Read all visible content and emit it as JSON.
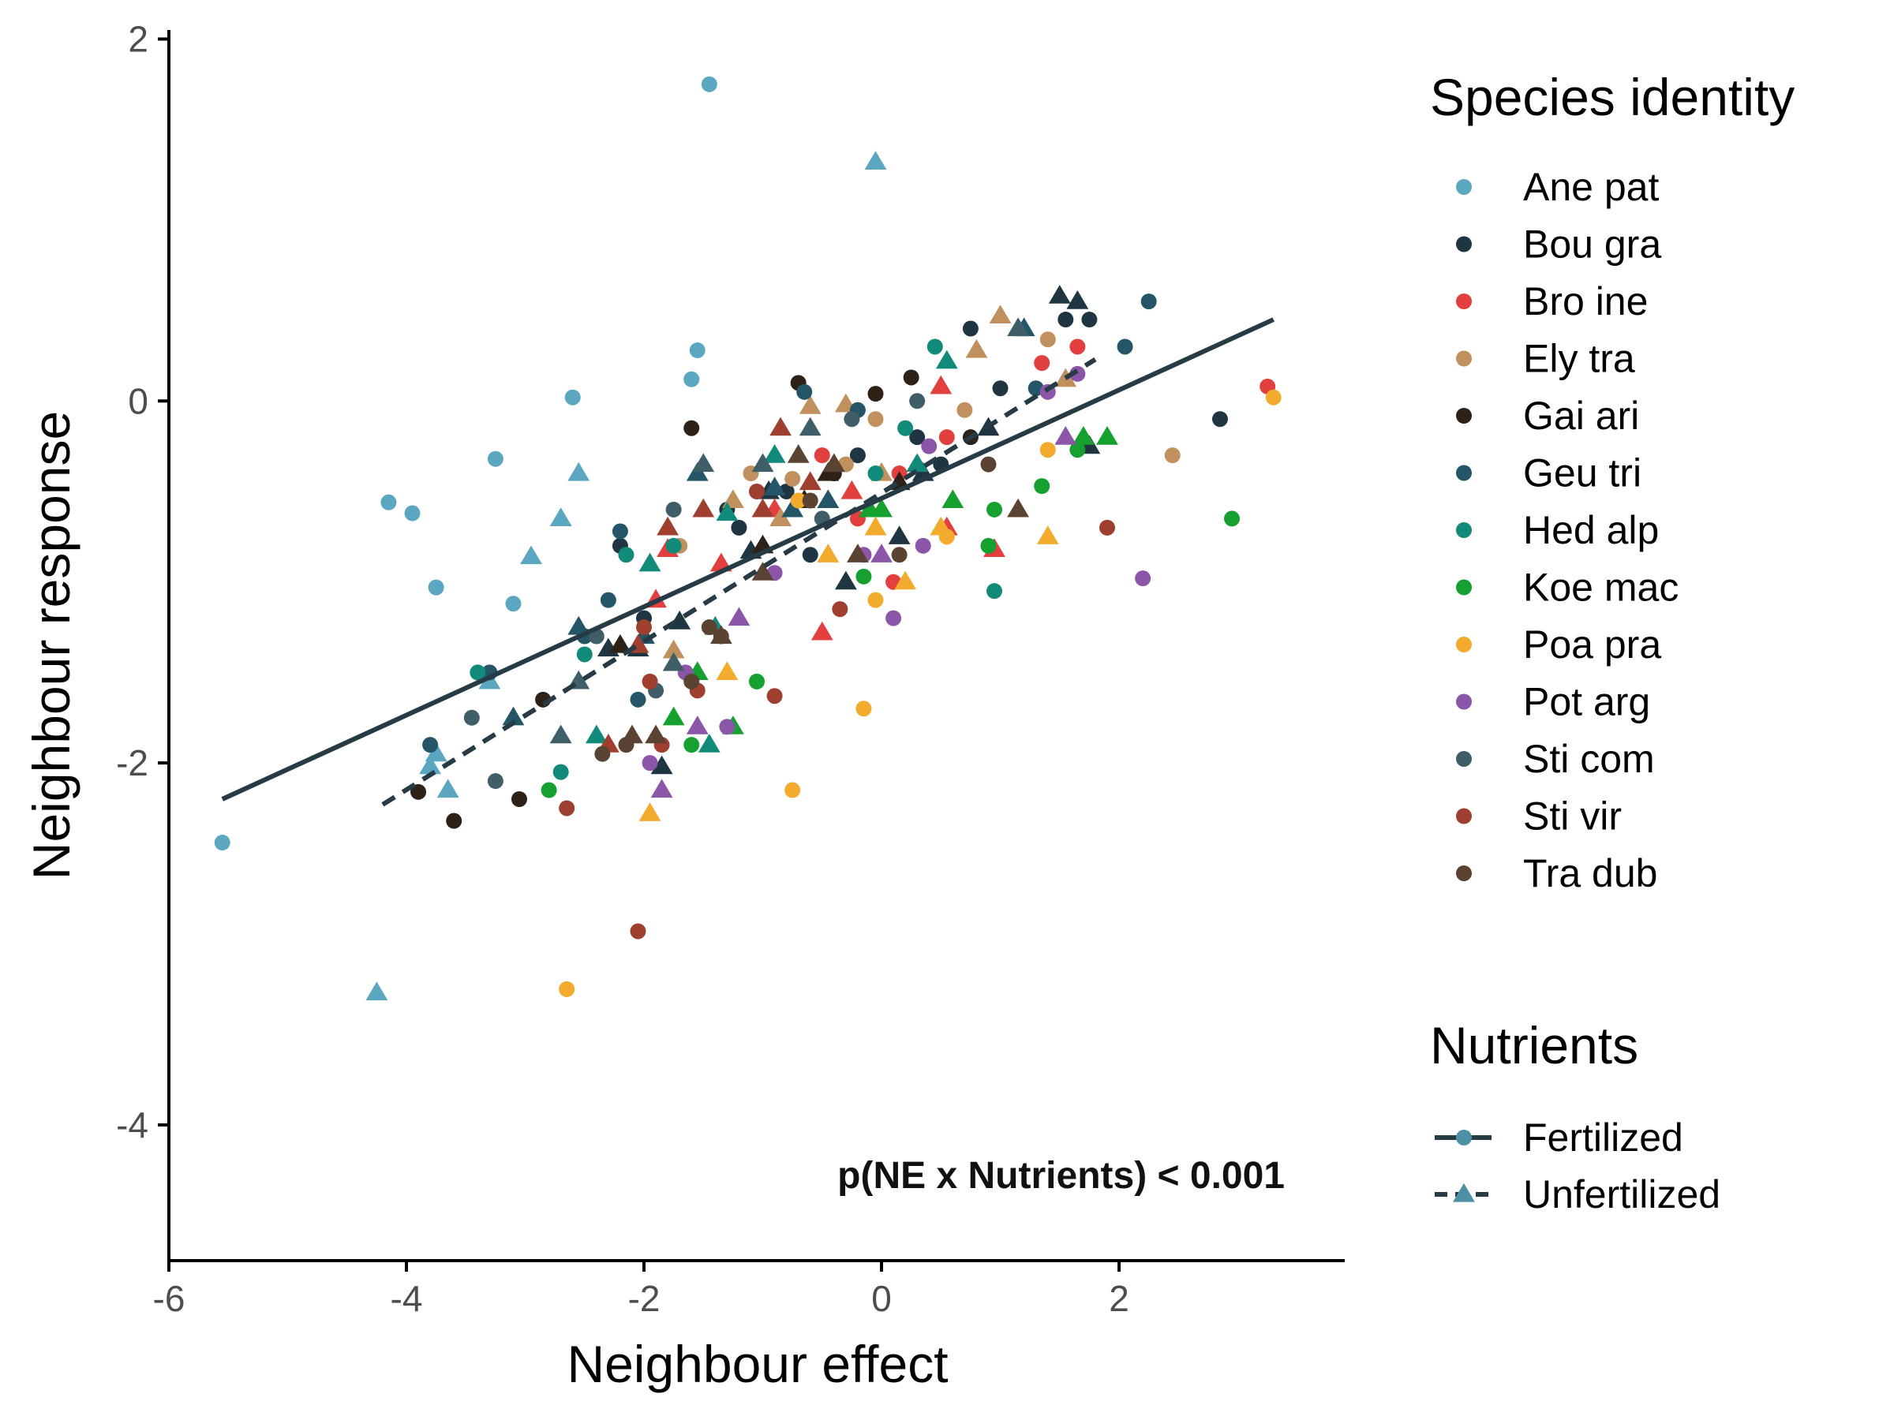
{
  "chart_data": {
    "type": "scatter",
    "xlabel": "Neighbour effect",
    "ylabel": "Neighbour response",
    "xlim": [
      -6,
      3.9
    ],
    "ylim": [
      -4.75,
      2.05
    ],
    "xticks": [
      -6,
      -4,
      -2,
      0,
      2
    ],
    "yticks": [
      -4,
      -2,
      0,
      2
    ],
    "grid": false,
    "annotation": "p(NE x Nutrients) < 0.001",
    "legend_species_title": "Species identity",
    "legend_nutrients_title": "Nutrients",
    "species": [
      {
        "name": "Ane pat",
        "color": "#5ba6c0"
      },
      {
        "name": "Bou gra",
        "color": "#1f3542"
      },
      {
        "name": "Bro ine",
        "color": "#e23f3f"
      },
      {
        "name": "Ely tra",
        "color": "#c0905e"
      },
      {
        "name": "Gai ari",
        "color": "#2d2118"
      },
      {
        "name": "Geu tri",
        "color": "#245668"
      },
      {
        "name": "Hed alp",
        "color": "#128a79"
      },
      {
        "name": "Koe mac",
        "color": "#16a030"
      },
      {
        "name": "Poa pra",
        "color": "#f2ab2c"
      },
      {
        "name": "Pot arg",
        "color": "#8c56a8"
      },
      {
        "name": "Sti com",
        "color": "#3f5e68"
      },
      {
        "name": "Sti vir",
        "color": "#9e3f30"
      },
      {
        "name": "Tra dub",
        "color": "#5a4332"
      }
    ],
    "nutrients": [
      {
        "name": "Fertilized",
        "shape": "circle",
        "line": "solid"
      },
      {
        "name": "Unfertilized",
        "shape": "triangle",
        "line": "dashed"
      }
    ],
    "fit_lines": [
      {
        "name": "Fertilized",
        "line": "solid",
        "color": "#263b45",
        "from": [
          -5.55,
          -2.2
        ],
        "to": [
          3.3,
          0.45
        ]
      },
      {
        "name": "Unfertilized",
        "line": "dashed",
        "color": "#263b45",
        "from": [
          -4.2,
          -2.23
        ],
        "to": [
          1.8,
          0.23
        ]
      }
    ],
    "points": [
      [
        -1.45,
        1.75,
        0,
        0
      ],
      [
        -2.6,
        0.02,
        0,
        0
      ],
      [
        -1.55,
        0.28,
        0,
        0
      ],
      [
        -1.6,
        0.12,
        0,
        0
      ],
      [
        -3.25,
        -0.32,
        0,
        0
      ],
      [
        -4.15,
        -0.56,
        0,
        0
      ],
      [
        -3.95,
        -0.62,
        0,
        0
      ],
      [
        -3.75,
        -1.03,
        0,
        0
      ],
      [
        -3.1,
        -1.12,
        0,
        0
      ],
      [
        -5.55,
        -2.44,
        0,
        0
      ],
      [
        -0.05,
        1.32,
        0,
        1
      ],
      [
        -2.55,
        -0.4,
        0,
        1
      ],
      [
        -2.7,
        -0.65,
        0,
        1
      ],
      [
        -2.95,
        -0.86,
        0,
        1
      ],
      [
        -3.3,
        -1.55,
        0,
        1
      ],
      [
        -3.75,
        -1.95,
        0,
        1
      ],
      [
        -3.65,
        -2.15,
        0,
        1
      ],
      [
        -4.25,
        -3.27,
        0,
        1
      ],
      [
        -3.8,
        -2.02,
        0,
        1
      ],
      [
        -2.2,
        -0.8,
        1,
        0
      ],
      [
        -1.3,
        -0.6,
        1,
        0
      ],
      [
        -0.8,
        -0.5,
        1,
        0
      ],
      [
        -0.2,
        -0.3,
        1,
        0
      ],
      [
        0.3,
        -0.2,
        1,
        0
      ],
      [
        0.75,
        0.4,
        1,
        0
      ],
      [
        1.0,
        0.07,
        1,
        0
      ],
      [
        1.55,
        0.45,
        1,
        0
      ],
      [
        1.75,
        0.45,
        1,
        0
      ],
      [
        2.85,
        -0.1,
        1,
        0
      ],
      [
        -2.0,
        -1.2,
        1,
        0
      ],
      [
        -1.2,
        -0.7,
        1,
        0
      ],
      [
        -0.6,
        -0.85,
        1,
        0
      ],
      [
        0.5,
        -0.35,
        1,
        0
      ],
      [
        1.5,
        0.58,
        1,
        1
      ],
      [
        1.65,
        0.55,
        1,
        1
      ],
      [
        -2.05,
        -1.37,
        1,
        1
      ],
      [
        -1.7,
        -1.22,
        1,
        1
      ],
      [
        -1.85,
        -2.02,
        1,
        1
      ],
      [
        -0.95,
        -0.5,
        1,
        1
      ],
      [
        -0.3,
        -1.0,
        1,
        1
      ],
      [
        0.15,
        -0.75,
        1,
        1
      ],
      [
        0.9,
        -0.15,
        1,
        1
      ],
      [
        -2.3,
        -1.37,
        1,
        1
      ],
      [
        -1.1,
        -0.83,
        1,
        1
      ],
      [
        0.35,
        -0.4,
        1,
        1
      ],
      [
        1.75,
        -0.25,
        1,
        1
      ],
      [
        3.25,
        0.08,
        2,
        0
      ],
      [
        1.35,
        0.21,
        2,
        0
      ],
      [
        1.65,
        0.3,
        2,
        0
      ],
      [
        0.55,
        -0.2,
        2,
        0
      ],
      [
        -0.5,
        -0.3,
        2,
        0
      ],
      [
        0.15,
        -0.4,
        2,
        0
      ],
      [
        -0.2,
        -0.65,
        2,
        0
      ],
      [
        0.1,
        -1.0,
        2,
        0
      ],
      [
        0.5,
        0.08,
        2,
        1
      ],
      [
        0.95,
        -0.82,
        2,
        1
      ],
      [
        -0.9,
        -0.6,
        2,
        1
      ],
      [
        -1.35,
        -0.9,
        2,
        1
      ],
      [
        -0.25,
        -0.5,
        2,
        1
      ],
      [
        -0.5,
        -1.28,
        2,
        1
      ],
      [
        0.55,
        -0.7,
        2,
        1
      ],
      [
        -1.8,
        -0.82,
        2,
        1
      ],
      [
        -1.9,
        -1.1,
        2,
        1
      ],
      [
        1.4,
        0.34,
        3,
        0
      ],
      [
        2.45,
        -0.3,
        3,
        0
      ],
      [
        -0.75,
        -0.43,
        3,
        0
      ],
      [
        -1.1,
        -0.4,
        3,
        0
      ],
      [
        -0.05,
        -0.1,
        3,
        0
      ],
      [
        0.7,
        -0.05,
        3,
        0
      ],
      [
        -1.7,
        -0.8,
        3,
        0
      ],
      [
        -0.3,
        -0.35,
        3,
        0
      ],
      [
        1.0,
        0.47,
        3,
        1
      ],
      [
        0.8,
        0.28,
        3,
        1
      ],
      [
        -0.6,
        -0.03,
        3,
        1
      ],
      [
        -1.25,
        -0.55,
        3,
        1
      ],
      [
        -1.75,
        -1.38,
        3,
        1
      ],
      [
        1.55,
        0.12,
        3,
        1
      ],
      [
        -0.3,
        -0.02,
        3,
        1
      ],
      [
        -0.85,
        -0.65,
        3,
        1
      ],
      [
        0.0,
        -0.4,
        3,
        1
      ],
      [
        -0.7,
        0.1,
        4,
        0
      ],
      [
        -1.6,
        -0.15,
        4,
        0
      ],
      [
        0.25,
        0.13,
        4,
        0
      ],
      [
        -0.05,
        0.04,
        4,
        0
      ],
      [
        -3.6,
        -2.32,
        4,
        0
      ],
      [
        -3.05,
        -2.2,
        4,
        0
      ],
      [
        -3.9,
        -2.16,
        4,
        0
      ],
      [
        -2.85,
        -1.65,
        4,
        0
      ],
      [
        0.75,
        -0.2,
        4,
        0
      ],
      [
        -0.4,
        -0.4,
        4,
        0
      ],
      [
        -1.0,
        -0.8,
        4,
        1
      ],
      [
        -0.45,
        -0.4,
        4,
        1
      ],
      [
        -2.2,
        -1.35,
        4,
        1
      ],
      [
        -0.65,
        -0.55,
        4,
        1
      ],
      [
        0.15,
        -0.45,
        4,
        1
      ],
      [
        -0.65,
        0.05,
        5,
        0
      ],
      [
        2.25,
        0.55,
        5,
        0
      ],
      [
        2.05,
        0.3,
        5,
        0
      ],
      [
        -2.2,
        -0.72,
        5,
        0
      ],
      [
        -2.3,
        -1.1,
        5,
        0
      ],
      [
        -2.5,
        -1.3,
        5,
        0
      ],
      [
        -3.3,
        -1.5,
        5,
        0
      ],
      [
        -3.8,
        -1.9,
        5,
        0
      ],
      [
        -2.05,
        -1.65,
        5,
        0
      ],
      [
        -0.2,
        -0.05,
        5,
        0
      ],
      [
        1.3,
        0.07,
        5,
        0
      ],
      [
        -0.9,
        -0.48,
        5,
        1
      ],
      [
        -0.45,
        -0.55,
        5,
        1
      ],
      [
        -2.55,
        -1.25,
        5,
        1
      ],
      [
        -2.0,
        -1.3,
        5,
        1
      ],
      [
        -1.55,
        -0.4,
        5,
        1
      ],
      [
        -0.75,
        -0.6,
        5,
        1
      ],
      [
        1.2,
        0.4,
        5,
        1
      ],
      [
        -3.1,
        -1.75,
        5,
        1
      ],
      [
        -0.05,
        -0.4,
        6,
        0
      ],
      [
        0.45,
        0.3,
        6,
        0
      ],
      [
        0.2,
        -0.15,
        6,
        0
      ],
      [
        -1.75,
        -0.8,
        6,
        0
      ],
      [
        -2.15,
        -0.85,
        6,
        0
      ],
      [
        -2.5,
        -1.4,
        6,
        0
      ],
      [
        -2.7,
        -2.05,
        6,
        0
      ],
      [
        0.95,
        -1.05,
        6,
        0
      ],
      [
        -3.4,
        -1.5,
        6,
        0
      ],
      [
        0.55,
        0.22,
        6,
        1
      ],
      [
        -1.3,
        -0.62,
        6,
        1
      ],
      [
        -1.95,
        -0.9,
        6,
        1
      ],
      [
        -1.4,
        -1.25,
        6,
        1
      ],
      [
        0.3,
        -0.35,
        6,
        1
      ],
      [
        -1.45,
        -1.9,
        6,
        1
      ],
      [
        -2.4,
        -1.85,
        6,
        1
      ],
      [
        -0.9,
        -0.3,
        6,
        1
      ],
      [
        0.9,
        -0.8,
        7,
        0
      ],
      [
        1.35,
        -0.47,
        7,
        0
      ],
      [
        2.95,
        -0.65,
        7,
        0
      ],
      [
        1.65,
        -0.27,
        7,
        0
      ],
      [
        0.95,
        -0.6,
        7,
        0
      ],
      [
        -1.05,
        -1.55,
        7,
        0
      ],
      [
        -1.6,
        -1.9,
        7,
        0
      ],
      [
        -0.15,
        -0.97,
        7,
        0
      ],
      [
        -2.8,
        -2.15,
        7,
        0
      ],
      [
        1.9,
        -0.2,
        7,
        1
      ],
      [
        0.6,
        -0.55,
        7,
        1
      ],
      [
        -1.25,
        -1.8,
        7,
        1
      ],
      [
        -1.55,
        -1.5,
        7,
        1
      ],
      [
        -0.1,
        -0.6,
        7,
        1
      ],
      [
        1.7,
        -0.2,
        7,
        1
      ],
      [
        0.0,
        -0.6,
        7,
        1
      ],
      [
        -1.75,
        -1.75,
        7,
        1
      ],
      [
        3.3,
        0.02,
        8,
        0
      ],
      [
        1.4,
        -0.27,
        8,
        0
      ],
      [
        -0.15,
        -1.7,
        8,
        0
      ],
      [
        -0.75,
        -2.15,
        8,
        0
      ],
      [
        -2.65,
        -3.25,
        8,
        0
      ],
      [
        -0.05,
        -1.1,
        8,
        0
      ],
      [
        -0.7,
        -0.55,
        8,
        0
      ],
      [
        0.55,
        -0.75,
        8,
        0
      ],
      [
        1.4,
        -0.75,
        8,
        1
      ],
      [
        0.2,
        -1.0,
        8,
        1
      ],
      [
        -0.05,
        -0.7,
        8,
        1
      ],
      [
        0.5,
        -0.7,
        8,
        1
      ],
      [
        -1.95,
        -2.28,
        8,
        1
      ],
      [
        -1.3,
        -1.5,
        8,
        1
      ],
      [
        -0.45,
        -0.85,
        8,
        1
      ],
      [
        2.2,
        -0.98,
        9,
        0
      ],
      [
        1.4,
        0.05,
        9,
        0
      ],
      [
        1.65,
        0.15,
        9,
        0
      ],
      [
        -0.9,
        -0.95,
        9,
        0
      ],
      [
        0.35,
        -0.8,
        9,
        0
      ],
      [
        0.1,
        -1.2,
        9,
        0
      ],
      [
        -1.3,
        -1.8,
        9,
        0
      ],
      [
        -1.95,
        -2.0,
        9,
        0
      ],
      [
        -1.65,
        -1.5,
        9,
        0
      ],
      [
        -0.15,
        -0.85,
        9,
        0
      ],
      [
        0.4,
        -0.25,
        9,
        0
      ],
      [
        -1.85,
        -2.15,
        9,
        1
      ],
      [
        -1.55,
        -1.8,
        9,
        1
      ],
      [
        1.55,
        -0.2,
        9,
        1
      ],
      [
        0.0,
        -0.85,
        9,
        1
      ],
      [
        -1.2,
        -1.2,
        9,
        1
      ],
      [
        -1.75,
        -0.6,
        10,
        0
      ],
      [
        -3.45,
        -1.75,
        10,
        0
      ],
      [
        -3.25,
        -2.1,
        10,
        0
      ],
      [
        -2.4,
        -1.3,
        10,
        0
      ],
      [
        -0.5,
        -0.65,
        10,
        0
      ],
      [
        0.3,
        0.0,
        10,
        0
      ],
      [
        -1.9,
        -1.6,
        10,
        0
      ],
      [
        -0.25,
        -0.1,
        10,
        0
      ],
      [
        -1.5,
        -0.35,
        10,
        1
      ],
      [
        -2.55,
        -1.55,
        10,
        1
      ],
      [
        -1.75,
        -1.45,
        10,
        1
      ],
      [
        -0.6,
        -0.15,
        10,
        1
      ],
      [
        1.15,
        0.4,
        10,
        1
      ],
      [
        -2.7,
        -1.85,
        10,
        1
      ],
      [
        -1.0,
        -0.35,
        10,
        1
      ],
      [
        1.9,
        -0.7,
        11,
        0
      ],
      [
        -2.05,
        -2.93,
        11,
        0
      ],
      [
        -0.9,
        -1.63,
        11,
        0
      ],
      [
        -2.65,
        -2.25,
        11,
        0
      ],
      [
        -1.85,
        -1.9,
        11,
        0
      ],
      [
        -2.0,
        -1.25,
        11,
        0
      ],
      [
        -0.35,
        -1.15,
        11,
        0
      ],
      [
        -1.05,
        -0.5,
        11,
        0
      ],
      [
        -1.95,
        -1.55,
        11,
        0
      ],
      [
        -1.55,
        -1.6,
        11,
        0
      ],
      [
        -0.85,
        -0.15,
        11,
        1
      ],
      [
        -1.8,
        -0.7,
        11,
        1
      ],
      [
        -1.5,
        -0.6,
        11,
        1
      ],
      [
        -2.05,
        -1.35,
        11,
        1
      ],
      [
        -0.6,
        -0.45,
        11,
        1
      ],
      [
        -2.3,
        -1.9,
        11,
        1
      ],
      [
        -1.0,
        -0.6,
        11,
        1
      ],
      [
        -1.35,
        -1.3,
        12,
        0
      ],
      [
        0.9,
        -0.35,
        12,
        0
      ],
      [
        -1.6,
        -1.55,
        12,
        0
      ],
      [
        -1.45,
        -1.25,
        12,
        0
      ],
      [
        -0.6,
        -0.55,
        12,
        0
      ],
      [
        0.15,
        -0.85,
        12,
        0
      ],
      [
        -2.15,
        -1.9,
        12,
        0
      ],
      [
        -2.35,
        -1.95,
        12,
        0
      ],
      [
        1.15,
        -0.6,
        12,
        1
      ],
      [
        -0.4,
        -0.35,
        12,
        1
      ],
      [
        -1.35,
        -1.3,
        12,
        1
      ],
      [
        -0.7,
        -0.3,
        12,
        1
      ],
      [
        -0.2,
        -0.85,
        12,
        1
      ],
      [
        -1.9,
        -1.85,
        12,
        1
      ],
      [
        -2.1,
        -1.85,
        12,
        1
      ],
      [
        -1.0,
        -0.95,
        12,
        1
      ]
    ]
  }
}
